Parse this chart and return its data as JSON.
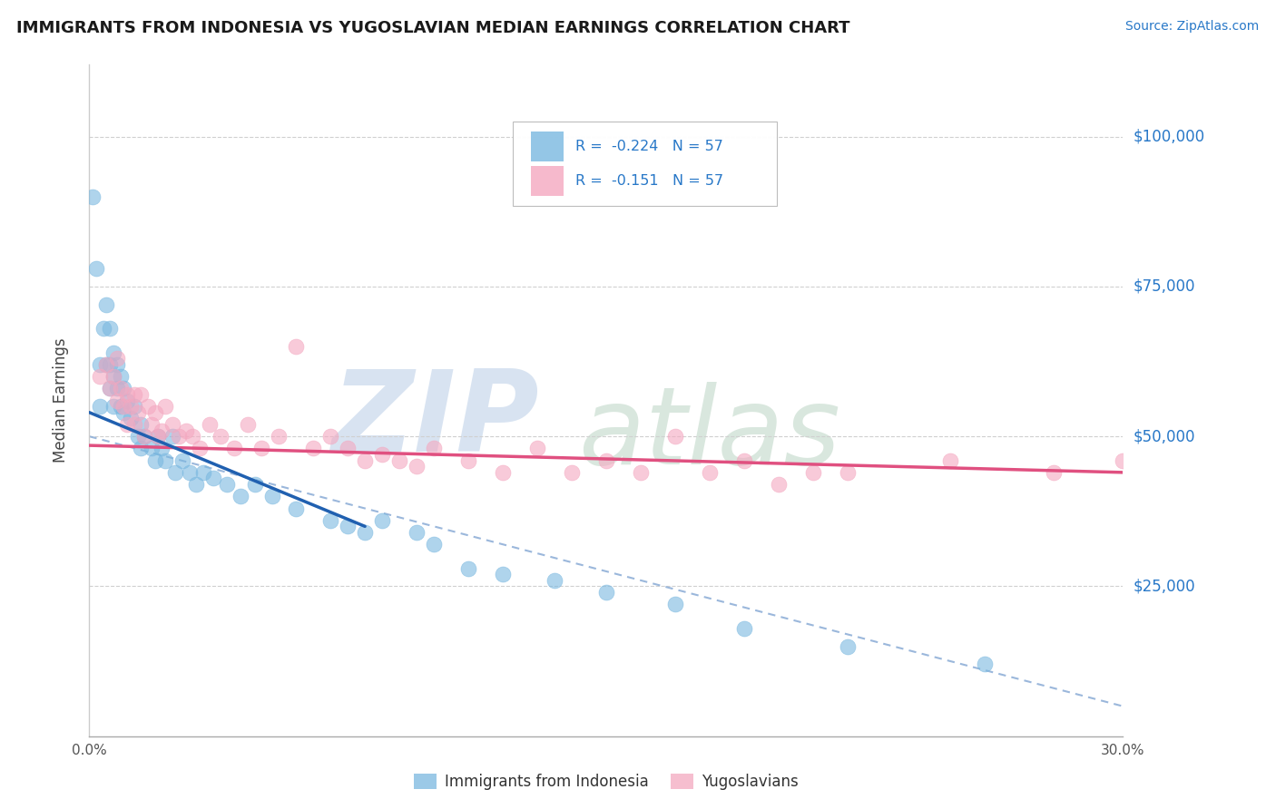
{
  "title": "IMMIGRANTS FROM INDONESIA VS YUGOSLAVIAN MEDIAN EARNINGS CORRELATION CHART",
  "source": "Source: ZipAtlas.com",
  "ylabel": "Median Earnings",
  "legend_text_row1": "R =  -0.224   N = 57",
  "legend_text_row2": "R =  -0.151   N = 57",
  "legend_label1": "Immigrants from Indonesia",
  "legend_label2": "Yugoslavians",
  "x_min": 0.0,
  "x_max": 0.3,
  "y_min": 0,
  "y_max": 112000,
  "yticks": [
    25000,
    50000,
    75000,
    100000
  ],
  "ytick_labels": [
    "$25,000",
    "$50,000",
    "$75,000",
    "$100,000"
  ],
  "xtick_vals": [
    0.0,
    0.05,
    0.1,
    0.15,
    0.2,
    0.25,
    0.3
  ],
  "xtick_labels": [
    "0.0%",
    "",
    "",
    "",
    "",
    "",
    "30.0%"
  ],
  "color_blue_scatter": "#7ab8e0",
  "color_pink_scatter": "#f4a8c0",
  "color_blue_line": "#2060b0",
  "color_pink_line": "#e05080",
  "color_dashed_line": "#90b0d8",
  "color_grid": "#d0d0d0",
  "color_title": "#1a1a1a",
  "color_source": "#2878c8",
  "color_yaxis_label": "#2878c8",
  "background": "#ffffff",
  "indonesia_x": [
    0.001,
    0.002,
    0.003,
    0.003,
    0.004,
    0.005,
    0.005,
    0.006,
    0.006,
    0.006,
    0.007,
    0.007,
    0.007,
    0.008,
    0.008,
    0.009,
    0.009,
    0.01,
    0.01,
    0.011,
    0.012,
    0.013,
    0.014,
    0.015,
    0.015,
    0.016,
    0.018,
    0.019,
    0.02,
    0.021,
    0.022,
    0.024,
    0.025,
    0.027,
    0.029,
    0.031,
    0.033,
    0.036,
    0.04,
    0.044,
    0.048,
    0.053,
    0.06,
    0.07,
    0.075,
    0.08,
    0.085,
    0.095,
    0.1,
    0.11,
    0.12,
    0.135,
    0.15,
    0.17,
    0.19,
    0.22,
    0.26
  ],
  "indonesia_y": [
    90000,
    78000,
    62000,
    55000,
    68000,
    72000,
    62000,
    68000,
    62000,
    58000,
    64000,
    60000,
    55000,
    62000,
    58000,
    60000,
    55000,
    58000,
    54000,
    56000,
    53000,
    55000,
    50000,
    52000,
    48000,
    50000,
    48000,
    46000,
    50000,
    48000,
    46000,
    50000,
    44000,
    46000,
    44000,
    42000,
    44000,
    43000,
    42000,
    40000,
    42000,
    40000,
    38000,
    36000,
    35000,
    34000,
    36000,
    34000,
    32000,
    28000,
    27000,
    26000,
    24000,
    22000,
    18000,
    15000,
    12000
  ],
  "yugoslavian_x": [
    0.003,
    0.005,
    0.006,
    0.007,
    0.008,
    0.008,
    0.009,
    0.01,
    0.011,
    0.011,
    0.012,
    0.013,
    0.013,
    0.014,
    0.015,
    0.016,
    0.017,
    0.018,
    0.019,
    0.02,
    0.021,
    0.022,
    0.024,
    0.026,
    0.028,
    0.03,
    0.032,
    0.035,
    0.038,
    0.042,
    0.046,
    0.05,
    0.055,
    0.06,
    0.065,
    0.07,
    0.075,
    0.08,
    0.085,
    0.09,
    0.095,
    0.1,
    0.11,
    0.12,
    0.13,
    0.14,
    0.15,
    0.16,
    0.17,
    0.18,
    0.19,
    0.2,
    0.21,
    0.22,
    0.25,
    0.28,
    0.3
  ],
  "yugoslavian_y": [
    60000,
    62000,
    58000,
    60000,
    56000,
    63000,
    58000,
    55000,
    57000,
    52000,
    55000,
    57000,
    52000,
    54000,
    57000,
    50000,
    55000,
    52000,
    54000,
    50000,
    51000,
    55000,
    52000,
    50000,
    51000,
    50000,
    48000,
    52000,
    50000,
    48000,
    52000,
    48000,
    50000,
    65000,
    48000,
    50000,
    48000,
    46000,
    47000,
    46000,
    45000,
    48000,
    46000,
    44000,
    48000,
    44000,
    46000,
    44000,
    50000,
    44000,
    46000,
    42000,
    44000,
    44000,
    46000,
    44000,
    46000
  ],
  "blue_line_x": [
    0.0,
    0.08
  ],
  "blue_line_y": [
    54000,
    35000
  ],
  "pink_line_x": [
    0.0,
    0.3
  ],
  "pink_line_y": [
    48500,
    44000
  ],
  "dash_line_x": [
    0.0,
    0.3
  ],
  "dash_line_y": [
    50000,
    5000
  ]
}
